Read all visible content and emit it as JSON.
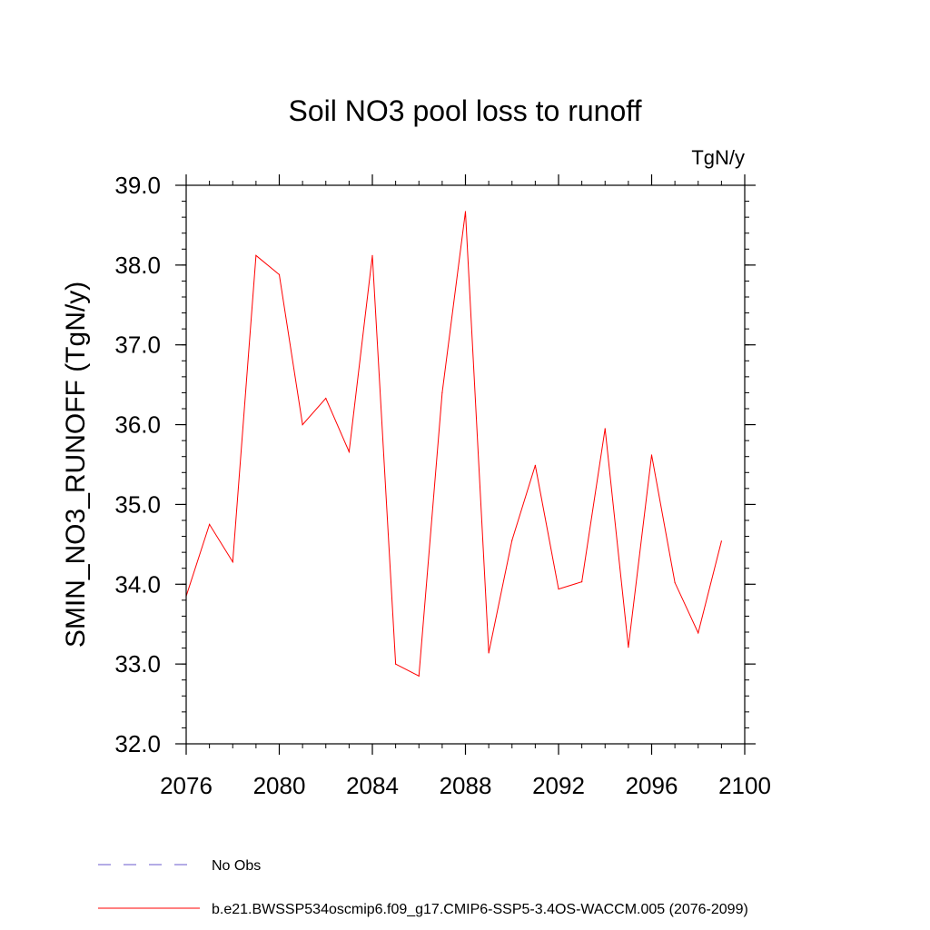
{
  "chart_data": {
    "type": "line",
    "title": "Soil NO3 pool loss to runoff",
    "units_label": "TgN/y",
    "ylabel": "SMIN_NO3_RUNOFF  (TgN/y)",
    "xlabel": "",
    "xlim": [
      2076,
      2100
    ],
    "ylim": [
      32.0,
      39.0
    ],
    "x_ticks": [
      2076,
      2080,
      2084,
      2088,
      2092,
      2096,
      2100
    ],
    "y_ticks": [
      32.0,
      33.0,
      34.0,
      35.0,
      36.0,
      37.0,
      38.0,
      39.0
    ],
    "x_tick_labels": [
      "2076",
      "2080",
      "2084",
      "2088",
      "2092",
      "2096",
      "2100"
    ],
    "y_tick_labels": [
      "32.0",
      "33.0",
      "34.0",
      "35.0",
      "36.0",
      "37.0",
      "38.0",
      "39.0"
    ],
    "x": [
      2076,
      2077,
      2078,
      2079,
      2080,
      2081,
      2082,
      2083,
      2084,
      2085,
      2086,
      2087,
      2088,
      2089,
      2090,
      2091,
      2092,
      2093,
      2094,
      2095,
      2096,
      2097,
      2098,
      2099
    ],
    "series": [
      {
        "name": "b.e21.BWSSP534oscmip6.f09_g17.CMIP6-SSP5-3.4OS-WACCM.005 (2076-2099)",
        "color": "#ff0000",
        "style": "solid",
        "values": [
          33.85,
          34.75,
          34.28,
          38.12,
          37.88,
          36.0,
          36.33,
          35.66,
          38.12,
          33.0,
          32.85,
          36.4,
          38.67,
          33.14,
          34.55,
          35.49,
          33.94,
          34.03,
          35.95,
          33.21,
          35.62,
          34.02,
          33.39,
          34.54
        ]
      }
    ],
    "legend": [
      {
        "label": "No Obs",
        "color": "#6a5acd",
        "style": "dashed"
      },
      {
        "label": "b.e21.BWSSP534oscmip6.f09_g17.CMIP6-SSP5-3.4OS-WACCM.005 (2076-2099)",
        "color": "#ff0000",
        "style": "solid"
      }
    ]
  }
}
